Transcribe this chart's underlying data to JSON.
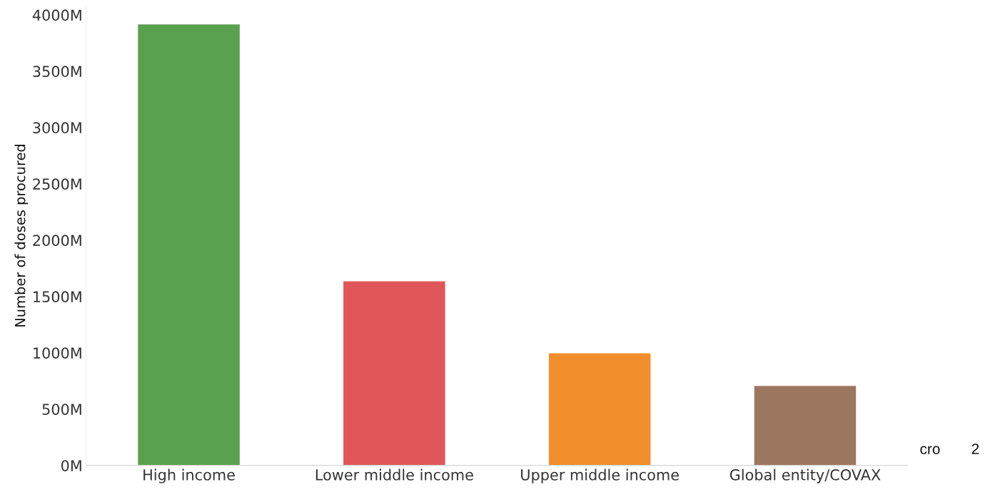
{
  "chart_data": {
    "type": "bar",
    "ylabel": "Number of doses procured",
    "categories": [
      "High income",
      "Lower middle income",
      "Upper middle income",
      "Global entity/COVAX"
    ],
    "values": [
      3920,
      1640,
      1000,
      710
    ],
    "colors": [
      "#59a14f",
      "#e15759",
      "#f28e2b",
      "#9c7760"
    ],
    "ylim": [
      0,
      4080
    ],
    "yticks": [
      {
        "value": 0,
        "label": "0M"
      },
      {
        "value": 500,
        "label": "500M"
      },
      {
        "value": 1000,
        "label": "1000M"
      },
      {
        "value": 1500,
        "label": "1500M"
      },
      {
        "value": 2000,
        "label": "2000M"
      },
      {
        "value": 2500,
        "label": "2500M"
      },
      {
        "value": 3000,
        "label": "3000M"
      },
      {
        "value": 3500,
        "label": "3500M"
      },
      {
        "value": 4000,
        "label": "4000M"
      }
    ],
    "grid": false,
    "annotations": [
      "cro",
      "2"
    ]
  }
}
